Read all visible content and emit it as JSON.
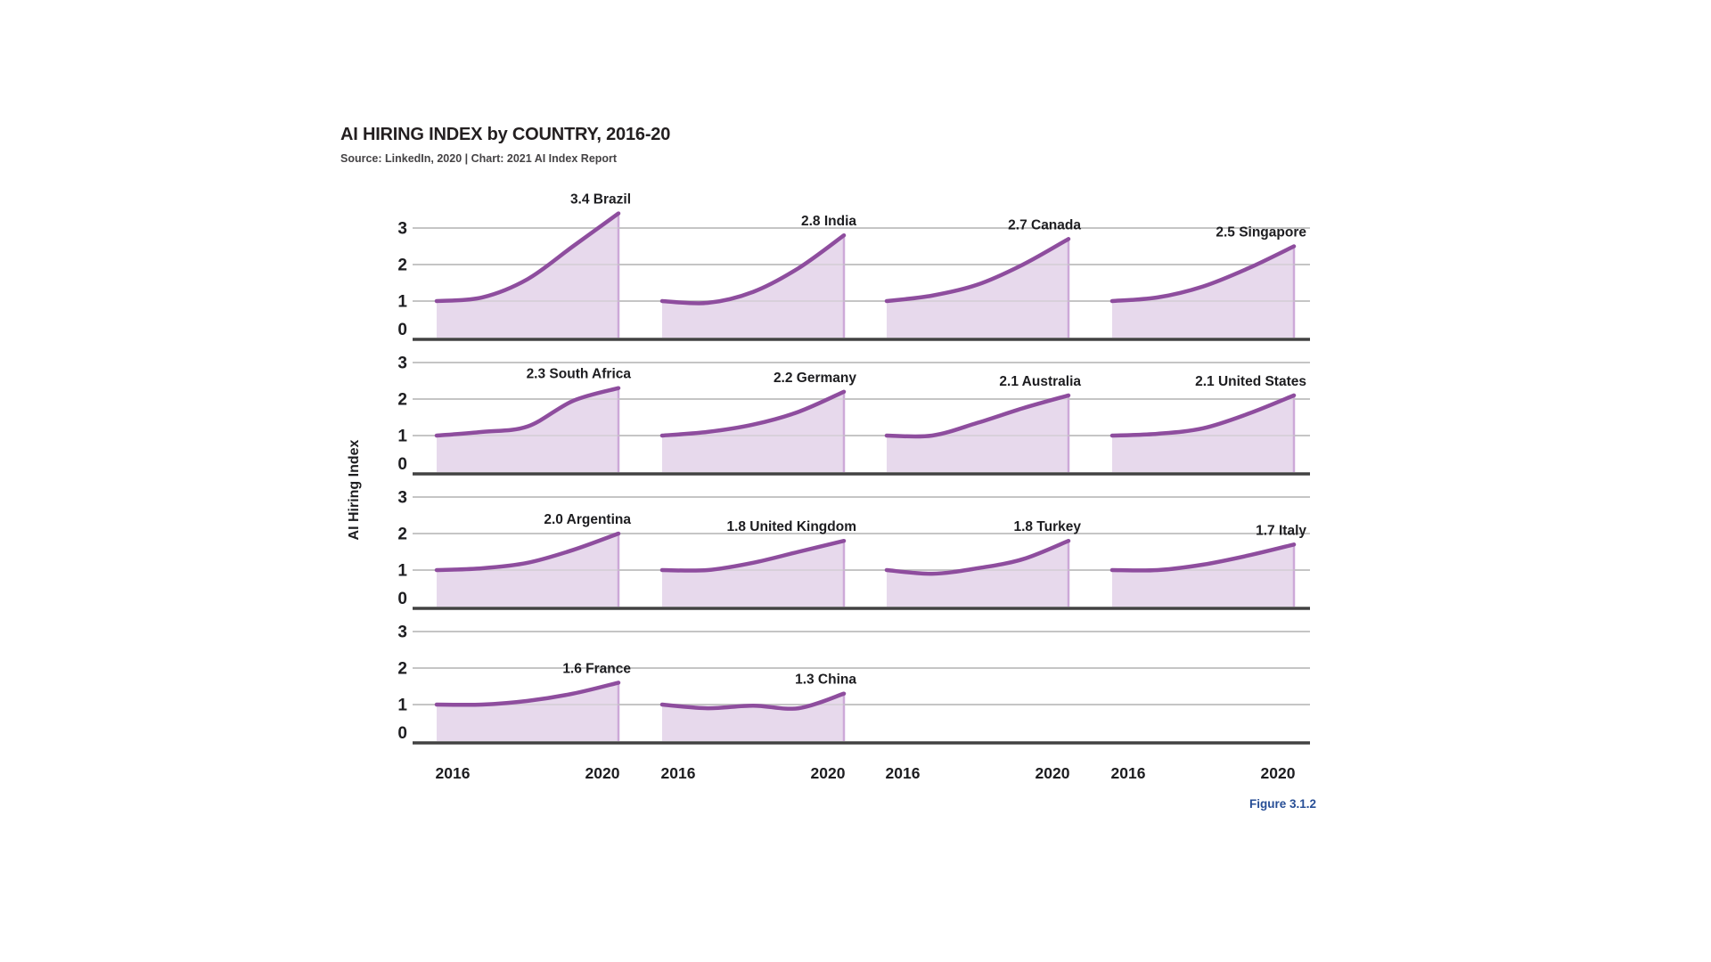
{
  "header": {
    "title": "AI HIRING INDEX by COUNTRY, 2016-20",
    "subtitle": "Source: LinkedIn, 2020 | Chart: 2021 AI Index Report"
  },
  "figure_label": "Figure 3.1.2",
  "chart_data": {
    "type": "area",
    "layout": "small-multiples, 4 columns x 4 rows, shared axes per row, x labels on bottom row only",
    "x": [
      2016,
      2017,
      2018,
      2019,
      2020
    ],
    "x_tick_labels": [
      "2016",
      "2020"
    ],
    "ylabel": "AI Hiring Index",
    "yticks": [
      0,
      1,
      2,
      3
    ],
    "ylim": [
      0,
      3.6
    ],
    "grid": true,
    "series": [
      {
        "name": "Brazil",
        "label": "3.4 Brazil",
        "final_value": 3.4,
        "values": [
          1.0,
          1.1,
          1.6,
          2.5,
          3.4
        ]
      },
      {
        "name": "India",
        "label": "2.8 India",
        "final_value": 2.8,
        "values": [
          1.0,
          0.95,
          1.25,
          1.9,
          2.8
        ]
      },
      {
        "name": "Canada",
        "label": "2.7 Canada",
        "final_value": 2.7,
        "values": [
          1.0,
          1.15,
          1.45,
          2.0,
          2.7
        ]
      },
      {
        "name": "Singapore",
        "label": "2.5 Singapore",
        "final_value": 2.5,
        "values": [
          1.0,
          1.1,
          1.4,
          1.9,
          2.5
        ]
      },
      {
        "name": "South Africa",
        "label": "2.3 South Africa",
        "final_value": 2.3,
        "values": [
          1.0,
          1.1,
          1.25,
          1.95,
          2.3
        ]
      },
      {
        "name": "Germany",
        "label": "2.2 Germany",
        "final_value": 2.2,
        "values": [
          1.0,
          1.1,
          1.3,
          1.65,
          2.2
        ]
      },
      {
        "name": "Australia",
        "label": "2.1 Australia",
        "final_value": 2.1,
        "values": [
          1.0,
          1.0,
          1.35,
          1.75,
          2.1
        ]
      },
      {
        "name": "United States",
        "label": "2.1 United States",
        "final_value": 2.1,
        "values": [
          1.0,
          1.05,
          1.2,
          1.6,
          2.1
        ]
      },
      {
        "name": "Argentina",
        "label": "2.0 Argentina",
        "final_value": 2.0,
        "values": [
          1.0,
          1.05,
          1.2,
          1.55,
          2.0
        ]
      },
      {
        "name": "United Kingdom",
        "label": "1.8 United Kingdom",
        "final_value": 1.8,
        "values": [
          1.0,
          1.0,
          1.2,
          1.5,
          1.8
        ]
      },
      {
        "name": "Turkey",
        "label": "1.8 Turkey",
        "final_value": 1.8,
        "values": [
          1.0,
          0.9,
          1.05,
          1.3,
          1.8
        ]
      },
      {
        "name": "Italy",
        "label": "1.7 Italy",
        "final_value": 1.7,
        "values": [
          1.0,
          1.0,
          1.15,
          1.4,
          1.7
        ]
      },
      {
        "name": "France",
        "label": "1.6 France",
        "final_value": 1.6,
        "values": [
          1.0,
          1.0,
          1.1,
          1.3,
          1.6
        ]
      },
      {
        "name": "China",
        "label": "1.3 China",
        "final_value": 1.3,
        "values": [
          1.0,
          0.9,
          0.97,
          0.9,
          1.3
        ]
      }
    ],
    "colors": {
      "line": "#8e4d9e",
      "area_fill": "#e7d9ec",
      "area_edge": "#cda9d8",
      "gridline": "#c5c5c5",
      "axis_line": "#424242",
      "tick_text": "#1d1d20",
      "title_text": "#231f20",
      "figure_label": "#274e96"
    }
  }
}
